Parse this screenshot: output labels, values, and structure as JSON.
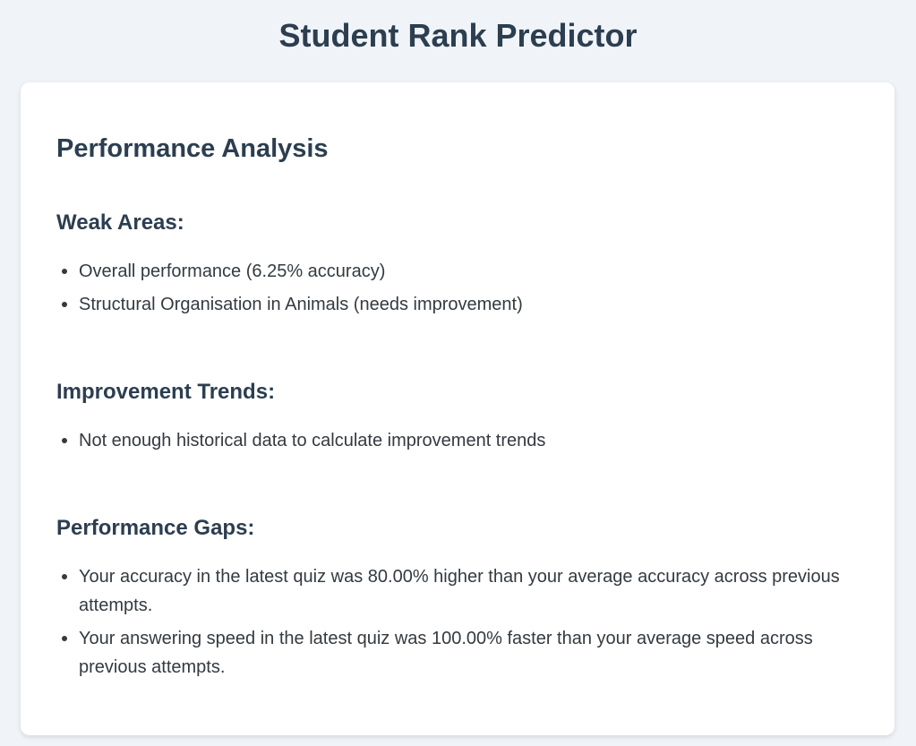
{
  "page": {
    "title": "Student Rank Predictor"
  },
  "analysis": {
    "heading": "Performance Analysis",
    "weak_areas": {
      "heading": "Weak Areas:",
      "items": [
        "Overall performance (6.25% accuracy)",
        "Structural Organisation in Animals (needs improvement)"
      ]
    },
    "improvement_trends": {
      "heading": "Improvement Trends:",
      "items": [
        "Not enough historical data to calculate improvement trends"
      ]
    },
    "performance_gaps": {
      "heading": "Performance Gaps:",
      "items": [
        "Your accuracy in the latest quiz was 80.00% higher than your average accuracy across previous attempts.",
        "Your answering speed in the latest quiz was 100.00% faster than your average speed across previous attempts."
      ]
    }
  },
  "colors": {
    "background": "#f0f4f8",
    "card": "#ffffff",
    "heading_text": "#2c3e50",
    "body_text": "#333a40"
  }
}
